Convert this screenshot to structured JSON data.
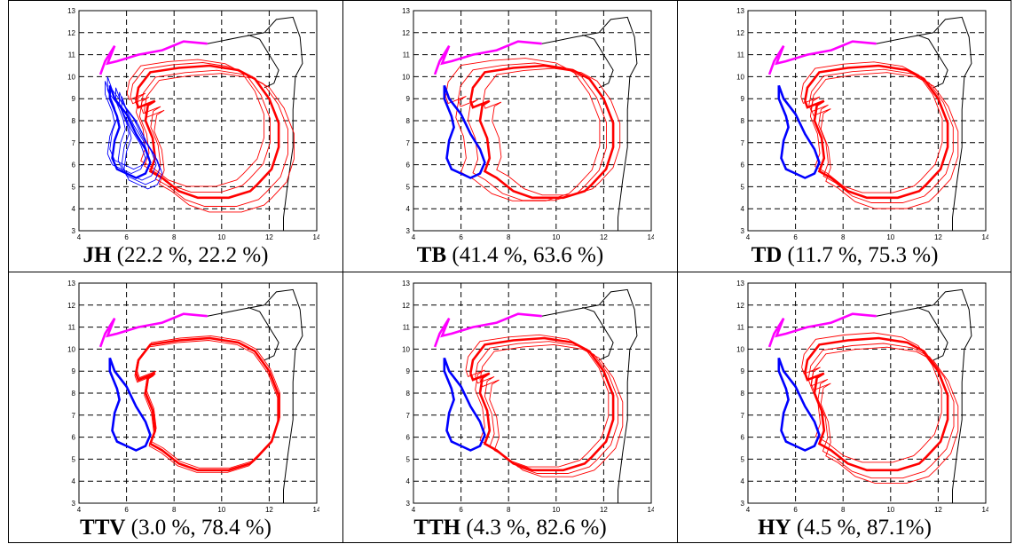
{
  "panels": [
    {
      "id": "JH",
      "name": "JH",
      "stats": "(22.2 %, 22.2 %)"
    },
    {
      "id": "TB",
      "name": "TB",
      "stats": "(41.4 %, 63.6 %)"
    },
    {
      "id": "TD",
      "name": "TD",
      "stats": "(11.7 %, 75.3 %)"
    },
    {
      "id": "TTV",
      "name": "TTV",
      "stats": "(3.0 %, 78.4 %)"
    },
    {
      "id": "TTH",
      "name": "TTH",
      "stats": "(4.3 %, 82.6 %)"
    },
    {
      "id": "HY",
      "name": "HY",
      "stats": "(4.5 %, 87.1%)"
    }
  ],
  "axes": {
    "xlim": [
      4,
      14
    ],
    "ylim": [
      3,
      13
    ],
    "xticks": [
      "4",
      "6",
      "8",
      "10",
      "12",
      "14"
    ],
    "yticks": [
      "3",
      "4",
      "5",
      "6",
      "7",
      "8",
      "9",
      "10",
      "11",
      "12",
      "13"
    ]
  },
  "colors": {
    "palate": "#ff00ff",
    "tongue": "#ff0000",
    "jaw": "#0000ff",
    "outline": "#000000"
  }
}
